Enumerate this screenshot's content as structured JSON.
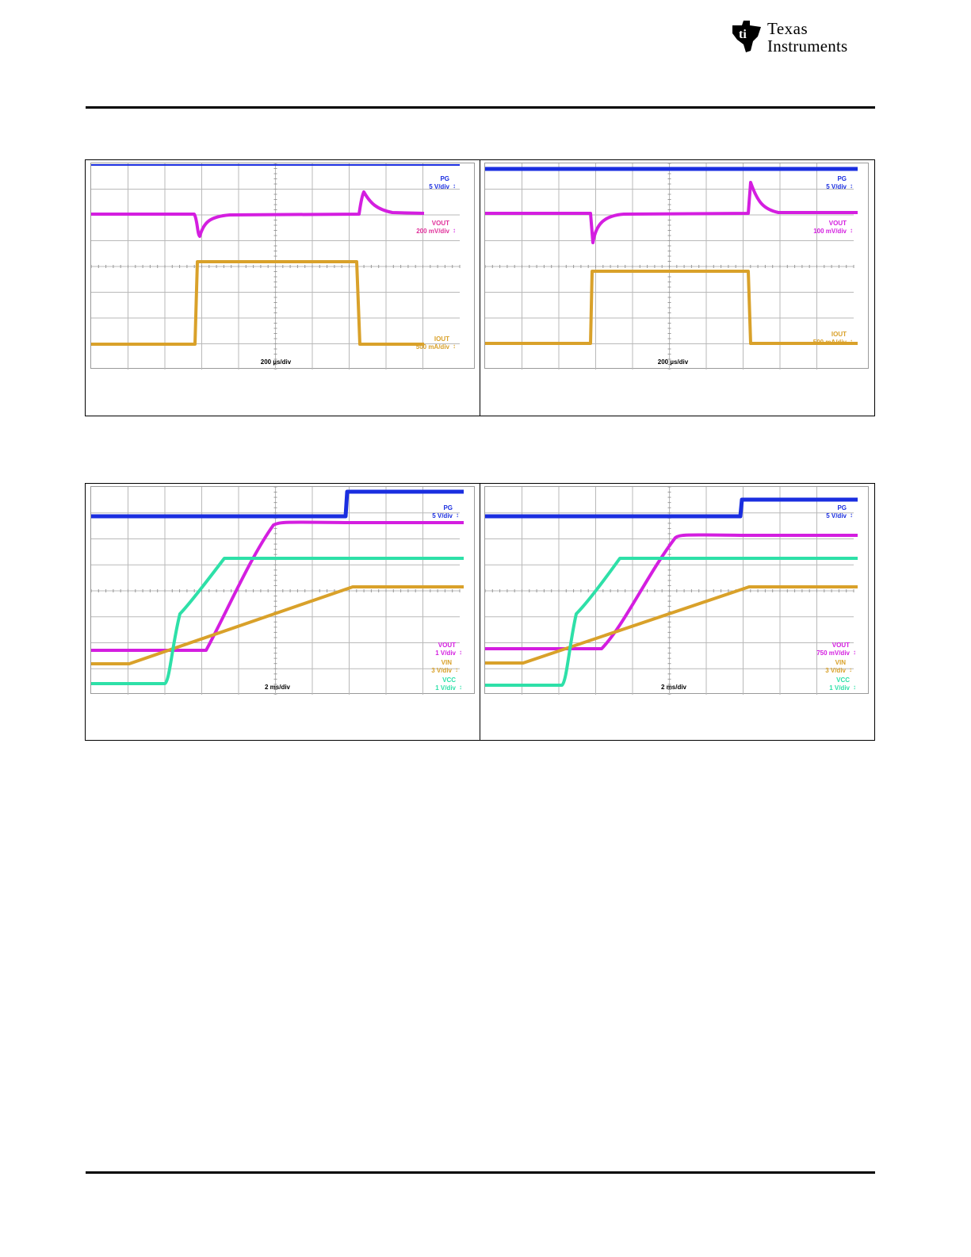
{
  "header": {
    "logo_line1": "Texas",
    "logo_line2": "Instruments",
    "logo_icon": "ti-state-logo-icon"
  },
  "colors": {
    "ch1_pg": "#1a2ee0",
    "ch2_vout": "#d41ee0",
    "ch3_iout_vin": "#d9a12a",
    "ch4_vcc": "#2ee0a8",
    "label_vout_top": "#e0309a",
    "grid": "#b9b9b9"
  },
  "figures": {
    "load_transient": {
      "left": {
        "labels": [
          {
            "name": "PG",
            "scale": "5 V/div",
            "channel": "ch1"
          },
          {
            "name": "VOUT",
            "scale": "200 mV/div",
            "channel": "ch2"
          },
          {
            "name": "IOUT",
            "scale": "500 mA/div",
            "channel": "ch3"
          }
        ],
        "timebase": "200 µs/div"
      },
      "right": {
        "labels": [
          {
            "name": "PG",
            "scale": "5 V/div",
            "channel": "ch1"
          },
          {
            "name": "VOUT",
            "scale": "100 mV/div",
            "channel": "ch2"
          },
          {
            "name": "IOUT",
            "scale": "500 mA/div",
            "channel": "ch3"
          }
        ],
        "timebase": "200 µs/div"
      }
    },
    "startup": {
      "left": {
        "labels": [
          {
            "name": "PG",
            "scale": "5 V/div",
            "channel": "ch1"
          },
          {
            "name": "VOUT",
            "scale": "1 V/div",
            "channel": "ch2"
          },
          {
            "name": "VIN",
            "scale": "3 V/div",
            "channel": "ch3"
          },
          {
            "name": "VCC",
            "scale": "1 V/div",
            "channel": "ch4"
          }
        ],
        "timebase": "2 ms/div"
      },
      "right": {
        "labels": [
          {
            "name": "PG",
            "scale": "5 V/div",
            "channel": "ch1"
          },
          {
            "name": "VOUT",
            "scale": "750 mV/div",
            "channel": "ch2"
          },
          {
            "name": "VIN",
            "scale": "3 V/div",
            "channel": "ch3"
          },
          {
            "name": "VCC",
            "scale": "1 V/div",
            "channel": "ch4"
          }
        ],
        "timebase": "2 ms/div"
      }
    }
  }
}
